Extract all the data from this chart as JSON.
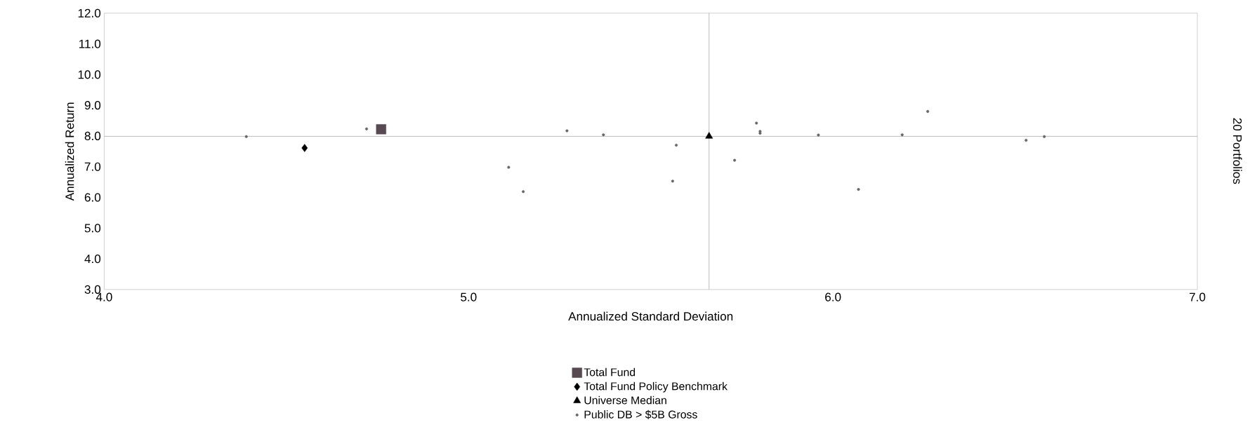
{
  "chart_data": {
    "type": "scatter",
    "xlabel": "Annualized Standard Deviation",
    "ylabel": "Annualized Return",
    "annotations": [
      "20 Portfolios"
    ],
    "xlim": [
      4,
      7
    ],
    "ylim": [
      3,
      12
    ],
    "xticks": [
      {
        "value": 4,
        "label": "4.0"
      },
      {
        "value": 5,
        "label": "5.0"
      },
      {
        "value": 6,
        "label": "6.0"
      },
      {
        "value": 7,
        "label": "7.0"
      }
    ],
    "yticks": [
      {
        "value": 3,
        "label": "3.0"
      },
      {
        "value": 4,
        "label": "4.0"
      },
      {
        "value": 5,
        "label": "5.0"
      },
      {
        "value": 6,
        "label": "6.0"
      },
      {
        "value": 7,
        "label": "7.0"
      },
      {
        "value": 8,
        "label": "8.0"
      },
      {
        "value": 9,
        "label": "9.0"
      },
      {
        "value": 10,
        "label": "10.0"
      },
      {
        "value": 11,
        "label": "11.0"
      },
      {
        "value": 12,
        "label": "12.0"
      }
    ],
    "grid": false,
    "legend": "bottom",
    "ref_lines": [
      {
        "axis": "x",
        "value": 5.66,
        "color": "#808080"
      },
      {
        "axis": "y",
        "value": 7.99,
        "color": "#808080"
      }
    ],
    "series": [
      {
        "name": "Total Fund",
        "color": "#574a50",
        "marker": "square",
        "x": [
          4.76
        ],
        "values": [
          8.22
        ]
      },
      {
        "name": "Total Fund Policy Benchmark",
        "color": "#000000",
        "marker": "diamond",
        "x": [
          4.55
        ],
        "values": [
          7.61
        ]
      },
      {
        "name": "Universe Median",
        "color": "#000000",
        "marker": "triangle",
        "x": [
          5.66
        ],
        "values": [
          7.99
        ]
      },
      {
        "name": "Public DB > $5B Gross",
        "color": "#666666",
        "marker": "circle",
        "x": [
          4.39,
          4.72,
          5.27,
          5.37,
          5.57,
          5.11,
          5.15,
          5.56,
          5.79,
          5.8,
          5.8,
          5.73,
          5.96,
          6.19,
          6.26,
          6.07,
          6.53,
          6.58
        ],
        "values": [
          7.98,
          8.23,
          8.17,
          8.04,
          7.7,
          6.98,
          6.19,
          6.53,
          8.42,
          8.15,
          8.09,
          7.21,
          8.03,
          8.04,
          8.8,
          6.26,
          7.86,
          7.98
        ]
      }
    ]
  }
}
